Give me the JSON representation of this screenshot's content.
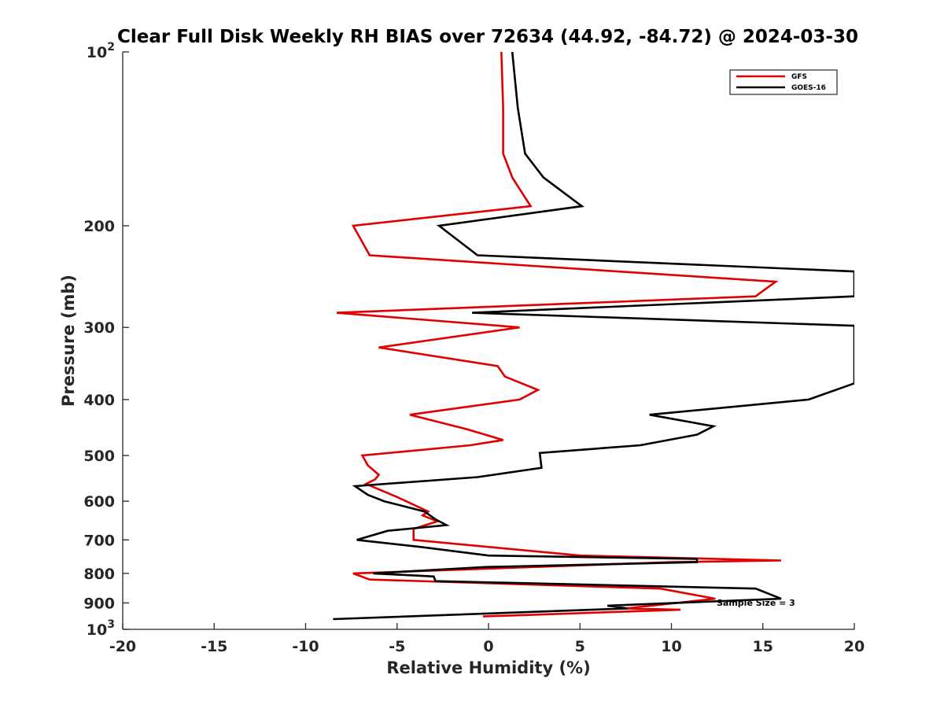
{
  "chart_data": {
    "type": "line",
    "title": "Clear Full Disk Weekly RH BIAS over 72634 (44.92, -84.72) @ 2024-03-30",
    "xlabel": "Relative Humidity (%)",
    "ylabel": "Pressure (mb)",
    "xlim": [
      -20,
      20
    ],
    "ylim": [
      100,
      1000
    ],
    "yscale": "log",
    "y_reversed": true,
    "grid": false,
    "x_ticks": [
      -20,
      -15,
      -10,
      -5,
      0,
      5,
      10,
      15,
      20
    ],
    "x_tick_labels": [
      "-20",
      "-15",
      "-10",
      "-5",
      "0",
      "5",
      "10",
      "15",
      "20"
    ],
    "y_ticks": [
      100,
      200,
      300,
      400,
      500,
      600,
      700,
      800,
      900,
      1000
    ],
    "y_tick_labels": [
      {
        "base": "10",
        "exp": "2"
      },
      {
        "base": "200",
        "exp": ""
      },
      {
        "base": "300",
        "exp": ""
      },
      {
        "base": "400",
        "exp": ""
      },
      {
        "base": "500",
        "exp": ""
      },
      {
        "base": "600",
        "exp": ""
      },
      {
        "base": "700",
        "exp": ""
      },
      {
        "base": "800",
        "exp": ""
      },
      {
        "base": "900",
        "exp": ""
      },
      {
        "base": "10",
        "exp": "3"
      }
    ],
    "legend_position": "top-right",
    "annotation": "Sample Size = 3",
    "annotation_at": {
      "x": 16.5,
      "y": 900
    },
    "series": [
      {
        "name": "GFS",
        "color": "#e00000",
        "points": [
          [
            0.7,
            100
          ],
          [
            0.8,
            125
          ],
          [
            0.8,
            150
          ],
          [
            1.3,
            165
          ],
          [
            2.3,
            185
          ],
          [
            -7.4,
            200
          ],
          [
            -6.5,
            225
          ],
          [
            15.7,
            250
          ],
          [
            14.6,
            265
          ],
          [
            -8.3,
            283
          ],
          [
            1.7,
            300
          ],
          [
            -6.0,
            325
          ],
          [
            0.5,
            350
          ],
          [
            0.9,
            365
          ],
          [
            2.7,
            385
          ],
          [
            1.7,
            400
          ],
          [
            -4.3,
            425
          ],
          [
            -1.2,
            450
          ],
          [
            0.8,
            470
          ],
          [
            -1.0,
            480
          ],
          [
            -6.9,
            500
          ],
          [
            -6.6,
            520
          ],
          [
            -6.0,
            540
          ],
          [
            -6.2,
            550
          ],
          [
            -6.7,
            560
          ],
          [
            -5.0,
            590
          ],
          [
            -3.3,
            625
          ],
          [
            -3.6,
            635
          ],
          [
            -2.8,
            650
          ],
          [
            -4.1,
            670
          ],
          [
            -4.1,
            700
          ],
          [
            5.0,
            745
          ],
          [
            16.0,
            760
          ],
          [
            10.0,
            765
          ],
          [
            -7.4,
            800
          ],
          [
            -6.5,
            820
          ],
          [
            9.4,
            850
          ],
          [
            12.4,
            885
          ],
          [
            7.5,
            920
          ],
          [
            10.5,
            925
          ],
          [
            -0.3,
            950
          ]
        ]
      },
      {
        "name": "GOES-16",
        "color": "#000000",
        "points": [
          [
            1.3,
            100
          ],
          [
            1.6,
            125
          ],
          [
            2.0,
            150
          ],
          [
            3.0,
            165
          ],
          [
            5.1,
            185
          ],
          [
            -2.7,
            200
          ],
          [
            -0.6,
            225
          ],
          [
            20.0,
            240
          ],
          [
            20.0,
            255
          ],
          [
            20.0,
            265
          ],
          [
            -0.9,
            283
          ],
          [
            20.0,
            298
          ],
          [
            20.0,
            375
          ],
          [
            17.5,
            400
          ],
          [
            8.8,
            425
          ],
          [
            12.3,
            445
          ],
          [
            11.4,
            460
          ],
          [
            8.3,
            480
          ],
          [
            2.8,
            495
          ],
          [
            2.9,
            525
          ],
          [
            -0.6,
            545
          ],
          [
            -7.3,
            565
          ],
          [
            -6.6,
            585
          ],
          [
            -5.7,
            600
          ],
          [
            -3.5,
            625
          ],
          [
            -2.9,
            645
          ],
          [
            -2.3,
            660
          ],
          [
            -5.5,
            675
          ],
          [
            -7.2,
            700
          ],
          [
            -3.7,
            720
          ],
          [
            0.0,
            745
          ],
          [
            11.4,
            755
          ],
          [
            11.4,
            765
          ],
          [
            -0.2,
            780
          ],
          [
            -6.3,
            800
          ],
          [
            -3.0,
            810
          ],
          [
            -2.9,
            825
          ],
          [
            14.6,
            850
          ],
          [
            16.0,
            885
          ],
          [
            6.5,
            910
          ],
          [
            7.6,
            920
          ],
          [
            -8.5,
            960
          ]
        ]
      }
    ]
  }
}
